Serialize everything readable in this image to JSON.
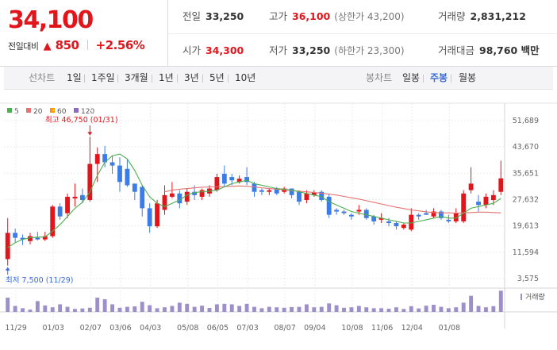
{
  "quote": {
    "price": "34,100",
    "change_label": "전일대비",
    "change_symbol": "▲",
    "change_value": "850",
    "change_rate": "+2.56%",
    "prev_close_label": "전일",
    "prev_close": "33,250",
    "high_label": "고가",
    "high": "36,100",
    "upper_limit": "(상한가 43,200)",
    "volume_label": "거래량",
    "volume": "2,831,212",
    "open_label": "시가",
    "open": "34,300",
    "low_label": "저가",
    "low": "33,250",
    "lower_limit": "(하한가 23,300)",
    "amount_label": "거래대금",
    "amount": "98,760 백만"
  },
  "tabs": {
    "line_head": "선차트",
    "line": [
      "1일",
      "1주일",
      "3개월",
      "1년",
      "3년",
      "5년",
      "10년"
    ],
    "candle_head": "봉차트",
    "candle": [
      "일봉",
      "주봉",
      "월봉"
    ],
    "active": "주봉"
  },
  "colors": {
    "up": "#e0161c",
    "down": "#3c7ce6",
    "ma5": "#4caf50",
    "ma20": "#e57373",
    "ma60": "#ff9800",
    "ma120": "#8e6bc2",
    "volume": "#9d8fc9",
    "link": "#3a6ad8"
  },
  "chart_data": {
    "type": "candlestick",
    "legend": [
      {
        "name": "5",
        "color": "#4caf50"
      },
      {
        "name": "20",
        "color": "#e57373"
      },
      {
        "name": "60",
        "color": "#ff9800"
      },
      {
        "name": "120",
        "color": "#8e6bc2"
      }
    ],
    "ylim": [
      3575,
      51689
    ],
    "y_ticks": [
      "51,689",
      "43,670",
      "35,651",
      "27,632",
      "19,613",
      "11,594",
      "3,575"
    ],
    "x_ticks": [
      "11/29",
      "01/03",
      "02/07",
      "03/06",
      "04/03",
      "05/08",
      "06/05",
      "07/03",
      "08/07",
      "09/04",
      "10/08",
      "11/06",
      "12/04",
      "01/08"
    ],
    "high_annotation": "최고 46,750 (01/31)",
    "low_annotation": "최저 7,500 (11/29)",
    "volume_label": "거래량",
    "candles": [
      [
        9500,
        22000,
        7500,
        17500
      ],
      [
        17500,
        18800,
        14500,
        16000
      ],
      [
        16000,
        17000,
        13800,
        15500
      ],
      [
        15000,
        17500,
        14000,
        16500
      ],
      [
        16000,
        17800,
        15200,
        15500
      ],
      [
        15500,
        17800,
        15000,
        16500
      ],
      [
        16500,
        26000,
        16000,
        25500
      ],
      [
        25500,
        26500,
        21500,
        22500
      ],
      [
        23500,
        29500,
        22000,
        28500
      ],
      [
        28000,
        32500,
        25500,
        28500
      ],
      [
        29000,
        31000,
        26500,
        27500
      ],
      [
        27500,
        46750,
        27000,
        38500
      ],
      [
        38500,
        43500,
        33000,
        41500
      ],
      [
        41500,
        44000,
        37500,
        39000
      ],
      [
        39000,
        41000,
        35500,
        38000
      ],
      [
        38000,
        40500,
        30000,
        33000
      ],
      [
        37000,
        40000,
        31500,
        32000
      ],
      [
        32500,
        32500,
        27500,
        30000
      ],
      [
        31500,
        32000,
        22500,
        25000
      ],
      [
        25000,
        26500,
        17500,
        19500
      ],
      [
        19500,
        27500,
        19000,
        26500
      ],
      [
        24500,
        32000,
        23000,
        29000
      ],
      [
        28500,
        33000,
        28000,
        29500
      ],
      [
        29500,
        30500,
        25000,
        26500
      ],
      [
        27000,
        31000,
        26000,
        30000
      ],
      [
        30000,
        32000,
        27500,
        29000
      ],
      [
        28500,
        31000,
        27500,
        30500
      ],
      [
        29500,
        32000,
        28500,
        31000
      ],
      [
        30500,
        35500,
        30000,
        34500
      ],
      [
        35500,
        38000,
        31500,
        32500
      ],
      [
        34500,
        35500,
        32000,
        33500
      ],
      [
        33000,
        35000,
        32500,
        34000
      ],
      [
        34500,
        37500,
        32000,
        33000
      ],
      [
        32500,
        33000,
        28500,
        30000
      ],
      [
        30500,
        31000,
        29000,
        30000
      ],
      [
        30000,
        31000,
        29000,
        30500
      ],
      [
        31000,
        31500,
        29000,
        29500
      ],
      [
        30000,
        31500,
        29500,
        31000
      ],
      [
        31000,
        31000,
        28000,
        29000
      ],
      [
        30000,
        30500,
        26000,
        27000
      ],
      [
        27500,
        30500,
        26500,
        29500
      ],
      [
        29000,
        30500,
        28500,
        29800
      ],
      [
        30000,
        30500,
        27000,
        27500
      ],
      [
        28500,
        29500,
        22000,
        23000
      ],
      [
        24500,
        25000,
        23000,
        24000
      ],
      [
        24000,
        24500,
        23000,
        23500
      ],
      [
        23000,
        23500,
        21500,
        22500
      ],
      [
        24000,
        26000,
        23000,
        24500
      ],
      [
        24500,
        25000,
        21500,
        22000
      ],
      [
        22500,
        23000,
        20000,
        21000
      ],
      [
        21500,
        23500,
        20500,
        22000
      ],
      [
        21000,
        22000,
        19500,
        20500
      ],
      [
        20500,
        21000,
        18500,
        19500
      ],
      [
        19000,
        20500,
        18500,
        20000
      ],
      [
        18500,
        25000,
        18000,
        23000
      ],
      [
        23000,
        23500,
        21500,
        22500
      ],
      [
        23500,
        24500,
        23000,
        23000
      ],
      [
        22500,
        25000,
        22000,
        24000
      ],
      [
        24000,
        24500,
        21500,
        22000
      ],
      [
        21500,
        23000,
        20500,
        21000
      ],
      [
        21000,
        25000,
        20500,
        23500
      ],
      [
        21000,
        30500,
        20500,
        29500
      ],
      [
        30500,
        37500,
        29500,
        32500
      ],
      [
        27000,
        29000,
        24000,
        26000
      ],
      [
        26000,
        29500,
        25000,
        28500
      ],
      [
        27500,
        30500,
        26000,
        29000
      ],
      [
        30000,
        39500,
        29000,
        34100
      ]
    ],
    "ma5": [
      13000,
      14500,
      15500,
      16000,
      16200,
      16300,
      18000,
      20000,
      22500,
      25000,
      26800,
      30000,
      35000,
      39000,
      41000,
      41500,
      40000,
      36500,
      32000,
      28500,
      26500,
      25500,
      26500,
      27500,
      29000,
      29800,
      30000,
      30200,
      30500,
      31500,
      32500,
      33000,
      33500,
      32500,
      32000,
      31500,
      31000,
      30800,
      30500,
      30000,
      29500,
      29000,
      28500,
      27000,
      26000,
      25000,
      24000,
      23500,
      23000,
      22500,
      22000,
      21500,
      21000,
      20500,
      20500,
      21000,
      21500,
      22000,
      22500,
      22000,
      22000,
      23500,
      25000,
      25500,
      26000,
      26500,
      28000
    ],
    "ma20": [
      null,
      null,
      null,
      null,
      null,
      null,
      null,
      null,
      null,
      null,
      null,
      null,
      null,
      null,
      null,
      null,
      null,
      null,
      null,
      null,
      null,
      30000,
      30500,
      30800,
      31000,
      31200,
      31400,
      31500,
      31500,
      31600,
      31700,
      31800,
      31700,
      31500,
      31200,
      31000,
      30800,
      30600,
      30400,
      30200,
      30000,
      29800,
      29600,
      29300,
      29000,
      28600,
      28200,
      27800,
      27300,
      26800,
      26300,
      25800,
      25300,
      24900,
      24500,
      24200,
      23900,
      23700,
      23600,
      23600,
      23500,
      23600,
      23700,
      23800,
      23800,
      23700,
      23600
    ],
    "volume": [
      0.62,
      0.26,
      0.16,
      0.1,
      0.47,
      0.28,
      0.2,
      0.33,
      0.22,
      0.13,
      0.15,
      0.18,
      0.62,
      0.55,
      0.33,
      0.18,
      0.22,
      0.24,
      0.44,
      0.29,
      0.16,
      0.2,
      0.26,
      0.4,
      0.35,
      0.22,
      0.27,
      0.17,
      0.33,
      0.35,
      0.33,
      0.26,
      0.35,
      0.22,
      0.16,
      0.22,
      0.2,
      0.18,
      0.21,
      0.22,
      0.33,
      0.2,
      0.22,
      0.37,
      0.29,
      0.18,
      0.2,
      0.26,
      0.2,
      0.16,
      0.16,
      0.14,
      0.2,
      0.13,
      0.25,
      0.15,
      0.27,
      0.31,
      0.22,
      0.16,
      0.2,
      0.4,
      0.7,
      0.26,
      0.2,
      0.25,
      0.92
    ]
  }
}
